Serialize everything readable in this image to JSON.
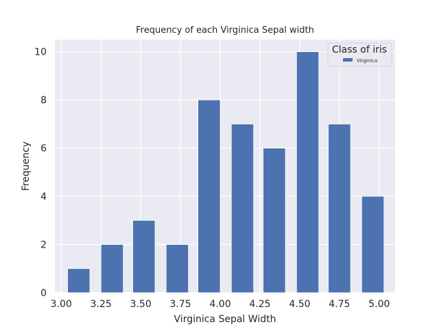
{
  "chart_data": {
    "type": "bar",
    "title": "Frequency of each Virginica Sepal width",
    "xlabel": "Virginica Sepal Width",
    "ylabel": "Frequency",
    "xlim": [
      2.96,
      5.1
    ],
    "ylim": [
      0,
      10.5
    ],
    "xticks": [
      "3.00",
      "3.25",
      "3.50",
      "3.75",
      "4.00",
      "4.25",
      "4.50",
      "4.75",
      "5.00"
    ],
    "yticks": [
      "0",
      "2",
      "4",
      "6",
      "8",
      "10"
    ],
    "grid": true,
    "legend": {
      "title": "Class of iris",
      "position": "top-right",
      "entries": [
        "Virginica"
      ]
    },
    "bins": [
      {
        "x0": 3.04,
        "x1": 3.18,
        "value": 1
      },
      {
        "x0": 3.25,
        "x1": 3.39,
        "value": 2
      },
      {
        "x0": 3.45,
        "x1": 3.59,
        "value": 3
      },
      {
        "x0": 3.66,
        "x1": 3.8,
        "value": 2
      },
      {
        "x0": 3.86,
        "x1": 4.0,
        "value": 8
      },
      {
        "x0": 4.07,
        "x1": 4.21,
        "value": 7
      },
      {
        "x0": 4.27,
        "x1": 4.41,
        "value": 6
      },
      {
        "x0": 4.48,
        "x1": 4.62,
        "value": 10
      },
      {
        "x0": 4.68,
        "x1": 4.82,
        "value": 7
      },
      {
        "x0": 4.89,
        "x1": 5.03,
        "value": 4
      }
    ],
    "colors": {
      "bar": "#4c72b0",
      "plot_bg": "#eaeaf2",
      "grid": "#ffffff"
    }
  }
}
